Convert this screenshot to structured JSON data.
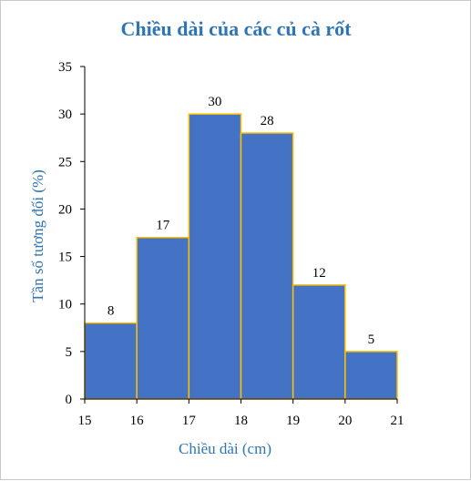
{
  "chart_data": {
    "type": "histogram",
    "title": "Chiều dài của các củ cà rốt",
    "xlabel": "Chiều dài (cm)",
    "ylabel": "Tần số tương đối (%)",
    "bin_edges": [
      15,
      16,
      17,
      18,
      19,
      20,
      21
    ],
    "values": [
      8,
      17,
      30,
      28,
      12,
      5
    ],
    "data_labels": [
      "8",
      "17",
      "30",
      "28",
      "12",
      "5"
    ],
    "x_ticks": [
      "15",
      "16",
      "17",
      "18",
      "19",
      "20",
      "21"
    ],
    "y_ticks": [
      "0",
      "5",
      "10",
      "15",
      "20",
      "25",
      "30",
      "35"
    ],
    "xlim": [
      15,
      21
    ],
    "ylim": [
      0,
      35
    ],
    "grid": false,
    "legend": "none",
    "colors": {
      "bar_fill": "#4472C4",
      "bar_edge": "#FFC000",
      "title": "#2E75B6",
      "axis_title": "#2E75B6",
      "axis_line": "#000000"
    }
  }
}
